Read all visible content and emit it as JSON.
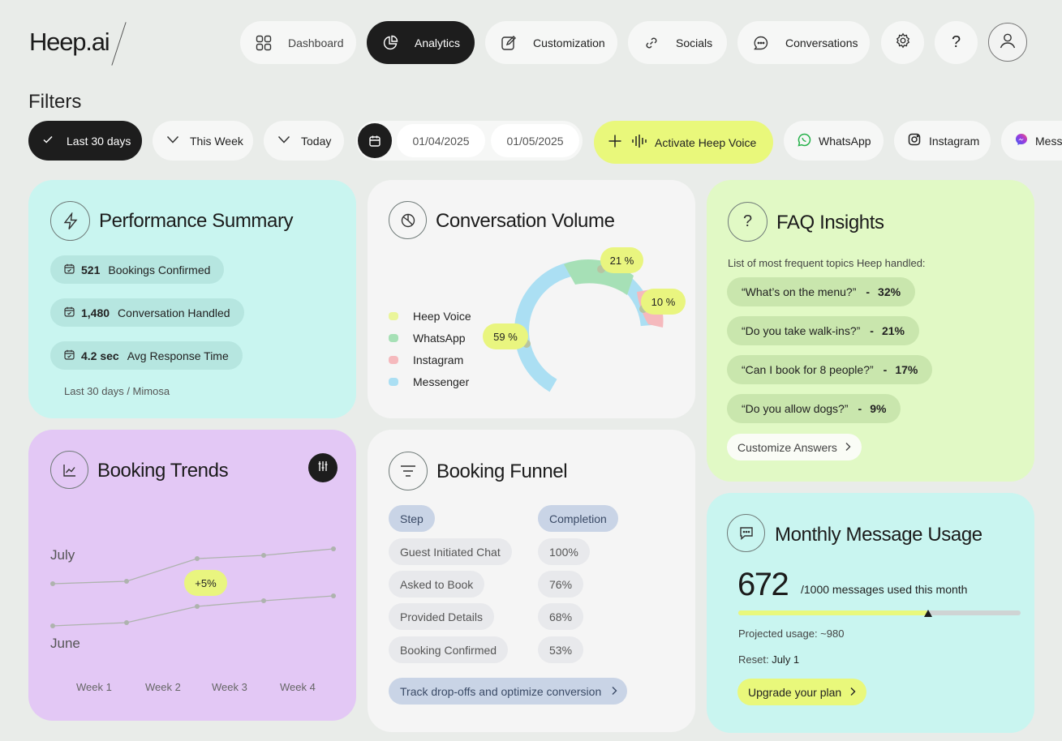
{
  "brand": {
    "logo": "Heep.ai"
  },
  "nav": {
    "items": [
      {
        "label": "Dashboard",
        "icon": "grid-icon"
      },
      {
        "label": "Analytics",
        "icon": "pie-chart-icon",
        "active": true
      },
      {
        "label": "Customization",
        "icon": "edit-icon"
      },
      {
        "label": "Socials",
        "icon": "link-icon"
      },
      {
        "label": "Conversations",
        "icon": "chat-bubble-icon"
      }
    ],
    "help_label": "?"
  },
  "filters": {
    "title": "Filters",
    "ranges": [
      "Last 30 days",
      "This Week",
      "Today"
    ],
    "date_from": "01/04/2025",
    "date_to": "01/05/2025",
    "activate_label": "Activate Heep Voice",
    "channels": [
      "WhatsApp",
      "Instagram",
      "Messenger"
    ]
  },
  "performance": {
    "title": "Performance Summary",
    "stats": [
      {
        "value": "521",
        "label": "Bookings Confirmed"
      },
      {
        "value": "1,480",
        "label": "Conversation Handled"
      },
      {
        "value": "4.2 sec",
        "label": "Avg Response Time"
      }
    ],
    "footer": "Last 30 days / Mimosa"
  },
  "volume": {
    "title": "Conversation Volume",
    "legend": [
      {
        "label": "Heep Voice",
        "color": "#eaf59a"
      },
      {
        "label": "WhatsApp",
        "color": "#a6e0b6"
      },
      {
        "label": "Instagram",
        "color": "#f5b9bd"
      },
      {
        "label": "Messenger",
        "color": "#abdff3"
      }
    ],
    "labels": [
      "21 %",
      "10 %",
      "59 %"
    ]
  },
  "faq": {
    "title": "FAQ Insights",
    "subtitle": "List of most frequent topics Heep handled:",
    "sep": "-",
    "items": [
      {
        "q": "“What’s on the menu?”",
        "pct": "32%"
      },
      {
        "q": "“Do you take walk-ins?”",
        "pct": "21%"
      },
      {
        "q": "“Can I book for 8 people?”",
        "pct": "17%"
      },
      {
        "q": "“Do you allow dogs?”",
        "pct": "9%"
      }
    ],
    "button": "Customize Answers"
  },
  "trends": {
    "title": "Booking Trends",
    "series_top": "July",
    "series_bottom": "June",
    "badge": "+5%",
    "weeks": [
      "Week 1",
      "Week 2",
      "Week 3",
      "Week 4"
    ]
  },
  "funnel": {
    "title": "Booking Funnel",
    "col_step": "Step",
    "col_completion": "Completion",
    "rows": [
      {
        "step": "Guest Initiated Chat",
        "pct": "100%"
      },
      {
        "step": "Asked to Book",
        "pct": "76%"
      },
      {
        "step": "Provided Details",
        "pct": "68%"
      },
      {
        "step": "Booking Confirmed",
        "pct": "53%"
      }
    ],
    "cta": "Track drop-offs and optimize conversion"
  },
  "usage": {
    "title": "Monthly Message Usage",
    "used": "672",
    "suffix": "/1000 messages used this month",
    "progress": 0.672,
    "projected_label": "Projected usage: ~980",
    "reset_label": "Reset:",
    "reset_value": "July 1",
    "button": "Upgrade your plan"
  }
}
